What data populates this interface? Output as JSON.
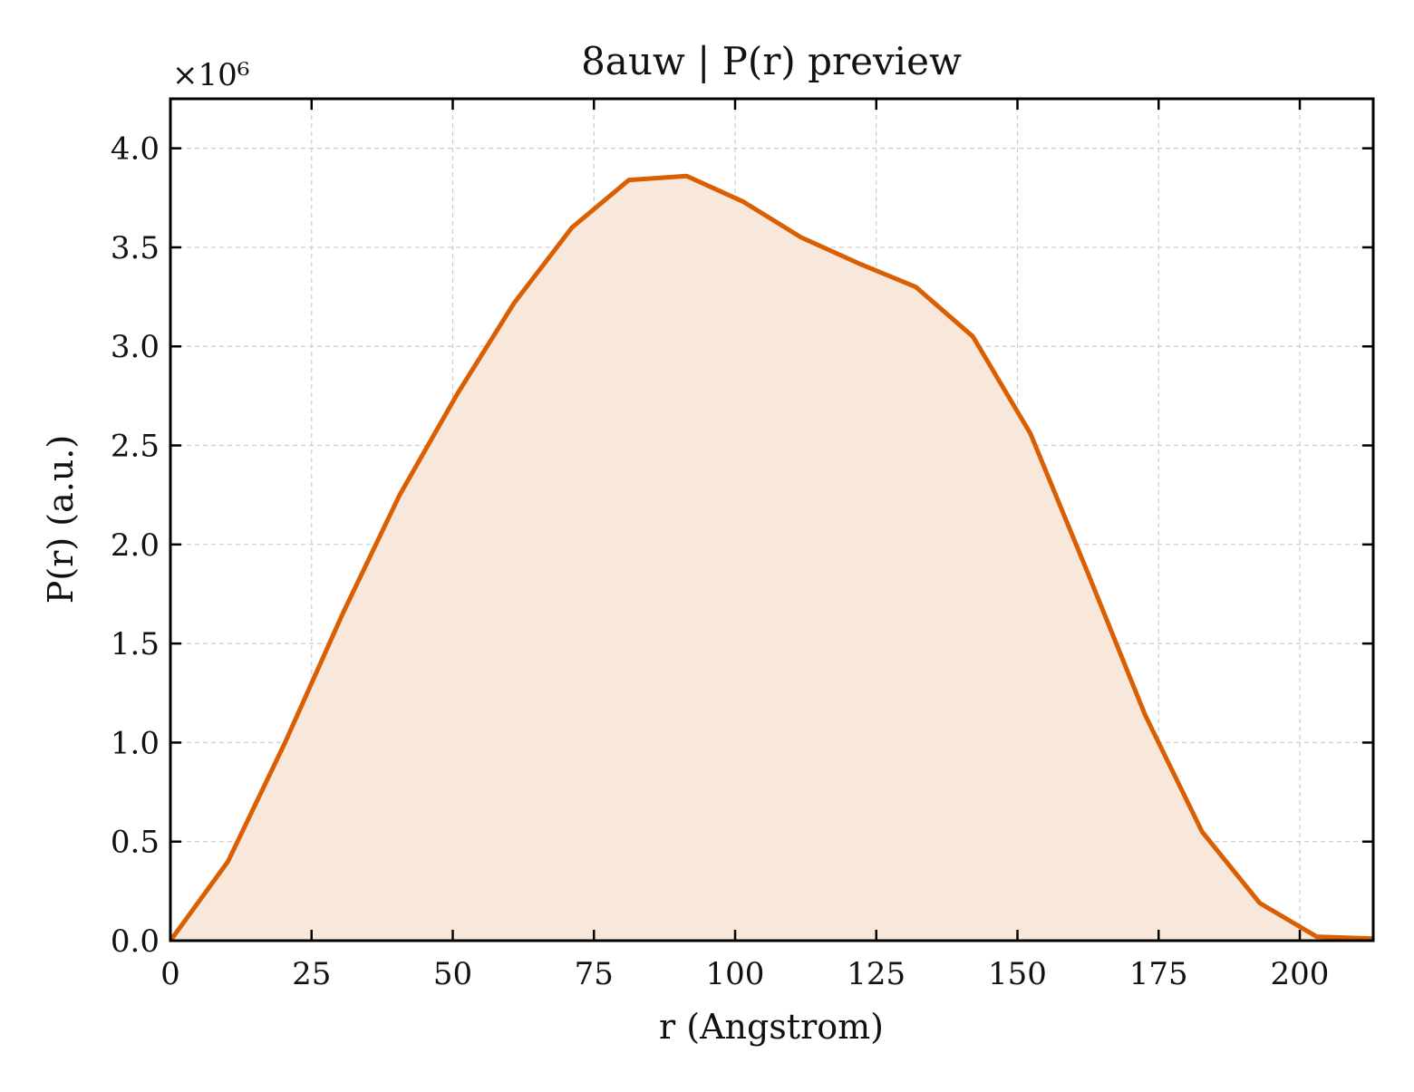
{
  "chart_data": {
    "type": "area",
    "title": "8auw | P(r) preview",
    "xlabel": "r (Angstrom)",
    "ylabel": "P(r) (a.u.)",
    "y_multiplier_text": "×10⁶",
    "xlim": [
      0,
      213
    ],
    "ylim": [
      0,
      4.25
    ],
    "x_ticks": [
      0,
      25,
      50,
      75,
      100,
      125,
      150,
      175,
      200
    ],
    "x_tick_labels": [
      "0",
      "25",
      "50",
      "75",
      "100",
      "125",
      "150",
      "175",
      "200"
    ],
    "y_ticks": [
      0,
      0.5,
      1.0,
      1.5,
      2.0,
      2.5,
      3.0,
      3.5,
      4.0
    ],
    "y_tick_labels": [
      "0.0",
      "0.5",
      "1.0",
      "1.5",
      "2.0",
      "2.5",
      "3.0",
      "3.5",
      "4.0"
    ],
    "grid": true,
    "series": [
      {
        "x": [
          0,
          10.2,
          20.3,
          30.5,
          40.6,
          50.8,
          60.9,
          71.1,
          81.2,
          91.4,
          101.5,
          111.7,
          121.8,
          132.0,
          142.1,
          152.3,
          162.4,
          172.6,
          182.7,
          192.9,
          203.0,
          213.0
        ],
        "y": [
          0.0,
          0.4,
          1.0,
          1.65,
          2.25,
          2.76,
          3.22,
          3.6,
          3.84,
          3.86,
          3.73,
          3.55,
          3.42,
          3.3,
          3.05,
          2.56,
          1.86,
          1.14,
          0.55,
          0.19,
          0.02,
          0.01
        ]
      }
    ],
    "colors": {
      "line": "#d95f02",
      "fill": "#f8e8dc",
      "grid": "#cccccc",
      "axis": "#000000"
    }
  }
}
